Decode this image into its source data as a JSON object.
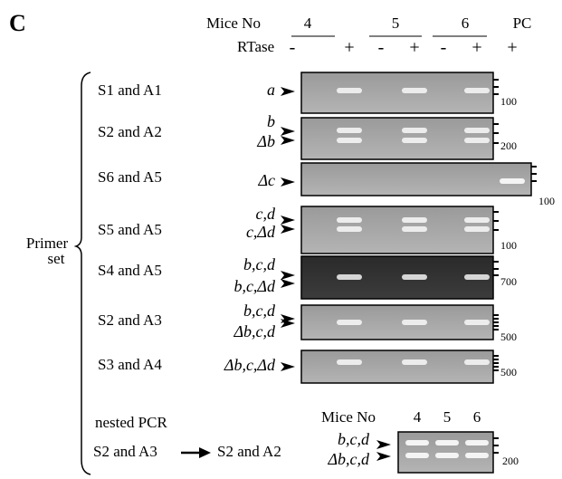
{
  "panel_label": "C",
  "header": {
    "mice_label": "Mice No",
    "mice": [
      "4",
      "5",
      "6",
      "PC"
    ],
    "rtase_label": "RTase",
    "rtase": [
      "-",
      "+",
      "-",
      "+",
      "-",
      "+",
      "+"
    ]
  },
  "primer_label": [
    "Primer",
    "set"
  ],
  "rows": [
    {
      "primer": "S1 and A1",
      "bands": [
        "a"
      ],
      "marker": "100"
    },
    {
      "primer": "S2 and A2",
      "bands": [
        "b",
        "Δb"
      ],
      "marker": "200"
    },
    {
      "primer": "S6 and A5",
      "bands": [
        "Δc"
      ],
      "marker": "100"
    },
    {
      "primer": "S5 and A5",
      "bands": [
        "c,d",
        "c,Δd"
      ],
      "marker": "100"
    },
    {
      "primer": "S4 and A5",
      "bands": [
        "b,c,d",
        "b,c,Δd"
      ],
      "marker": "700"
    },
    {
      "primer": "S2 and A3",
      "bands": [
        "b,c,d",
        "Δb,c,d"
      ],
      "marker": "500"
    },
    {
      "primer": "S3 and A4",
      "bands": [
        "Δb,c,Δd"
      ],
      "marker": "500"
    }
  ],
  "nested": {
    "title": "nested PCR",
    "from": "S2 and A3",
    "to": "S2 and A2",
    "mice_label": "Mice No",
    "mice": [
      "4",
      "5",
      "6"
    ],
    "bands": [
      "b,c,d",
      "Δb,c,d"
    ],
    "marker": "200"
  }
}
